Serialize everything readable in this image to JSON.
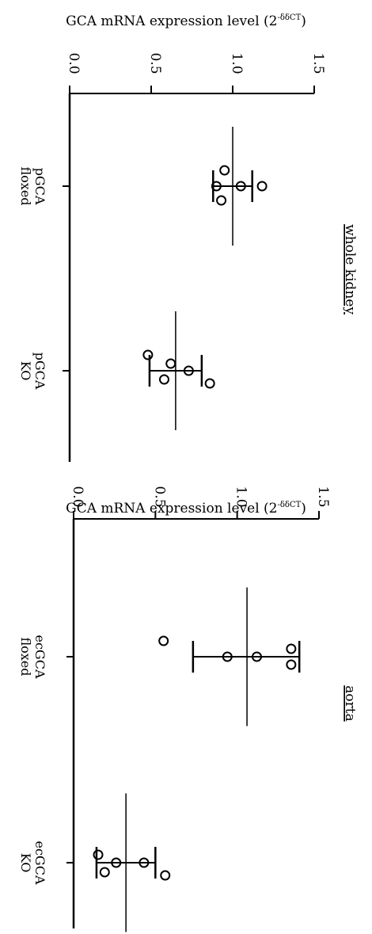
{
  "chart_data": [
    {
      "type": "scatter",
      "ylabel": "GCA mRNA expression level (2",
      "ylabel_sup": "-δδCT",
      "ylabel_close": ")",
      "ylim": [
        0.0,
        1.5
      ],
      "yticks": [
        "0.0",
        "0.5",
        "1.0",
        "1.5"
      ],
      "annotation": "whole kidney",
      "orientation": "rotated-90-clockwise",
      "categories": [
        "pGCA\nfloxed",
        "pGCA\nKO"
      ],
      "groups": [
        {
          "label_lines": [
            "pGCA",
            "floxed"
          ],
          "points": [
            0.95,
            0.9,
            1.05,
            1.18,
            0.93
          ],
          "mean": 1.0,
          "sd_low": 0.88,
          "sd_high": 1.12
        },
        {
          "label_lines": [
            "pGCA",
            "KO"
          ],
          "points": [
            0.48,
            0.62,
            0.58,
            0.73,
            0.86
          ],
          "mean": 0.65,
          "sd_low": 0.49,
          "sd_high": 0.81
        }
      ]
    },
    {
      "type": "scatter",
      "ylabel": "GCA mRNA expression level (2",
      "ylabel_sup": "-δδCT",
      "ylabel_close": ")",
      "ylim": [
        0.0,
        1.5
      ],
      "yticks": [
        "0.0",
        "0.5",
        "1.0",
        "1.5"
      ],
      "annotation": "aorta",
      "orientation": "rotated-90-clockwise",
      "categories": [
        "ecGCA\nfloxed",
        "ecGCA\nKO"
      ],
      "groups": [
        {
          "label_lines": [
            "ecGCA",
            "floxed"
          ],
          "points": [
            0.55,
            0.94,
            1.12,
            1.33,
            1.33
          ],
          "mean": 1.06,
          "sd_low": 0.73,
          "sd_high": 1.38
        },
        {
          "label_lines": [
            "ecGCA",
            "KO"
          ],
          "points": [
            0.15,
            0.19,
            0.26,
            0.43,
            0.56
          ],
          "mean": 0.32,
          "sd_low": 0.14,
          "sd_high": 0.5
        }
      ]
    }
  ]
}
